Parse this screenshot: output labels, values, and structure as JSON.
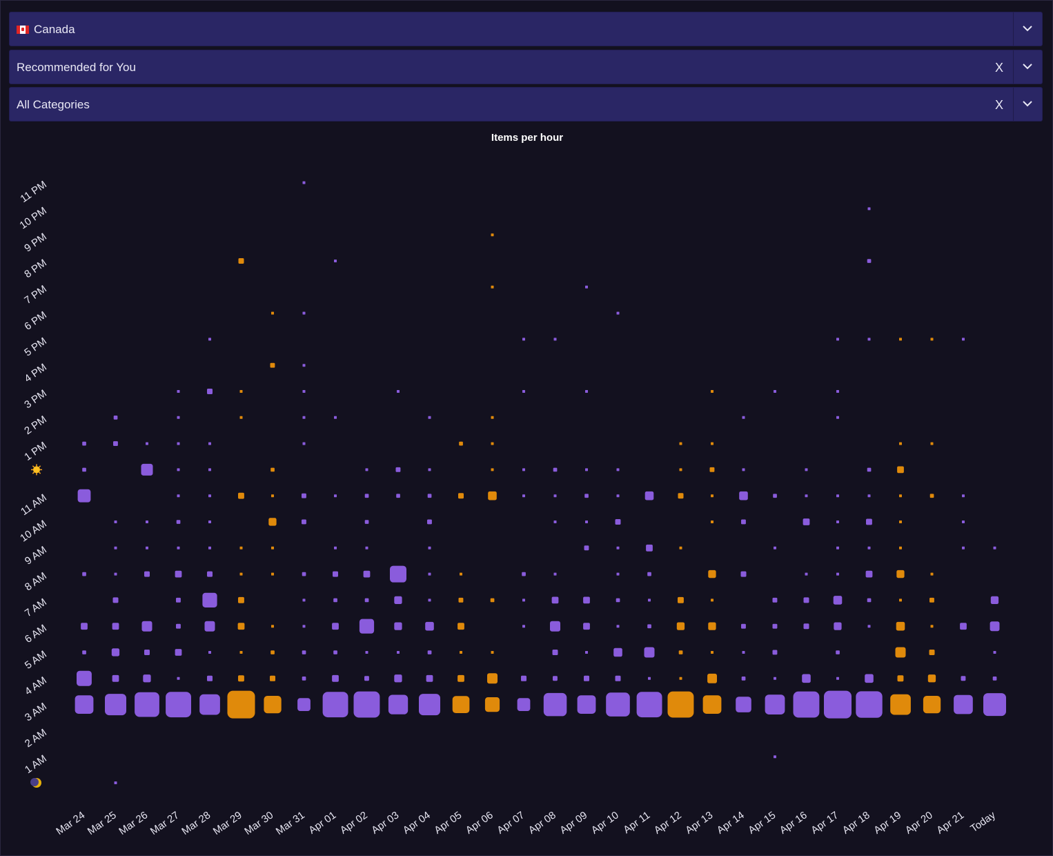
{
  "filters": {
    "country": {
      "label": "Canada",
      "flag_icon": "canada-flag-icon"
    },
    "feed": {
      "label": "Recommended for You",
      "clear_label": "X"
    },
    "category": {
      "label": "All Categories",
      "clear_label": "X"
    }
  },
  "colors": {
    "background": "#13111f",
    "select_bg": "#2a2665",
    "purple": "#8a5cdc",
    "orange": "#e08a0b"
  },
  "chart_data": {
    "type": "scatter",
    "title": "Items per hour",
    "x_categories": [
      "Mar 24",
      "Mar 25",
      "Mar 26",
      "Mar 27",
      "Mar 28",
      "Mar 29",
      "Mar 30",
      "Mar 31",
      "Apr 01",
      "Apr 02",
      "Apr 03",
      "Apr 04",
      "Apr 05",
      "Apr 06",
      "Apr 07",
      "Apr 08",
      "Apr 09",
      "Apr 10",
      "Apr 11",
      "Apr 12",
      "Apr 13",
      "Apr 14",
      "Apr 15",
      "Apr 16",
      "Apr 17",
      "Apr 18",
      "Apr 19",
      "Apr 20",
      "Apr 21",
      "Today"
    ],
    "y_categories": [
      "midnight",
      "1 AM",
      "2 AM",
      "3 AM",
      "4 AM",
      "5 AM",
      "6 AM",
      "7 AM",
      "8 AM",
      "9 AM",
      "10 AM",
      "11 AM",
      "noon",
      "1 PM",
      "2 PM",
      "3 PM",
      "4 PM",
      "5 PM",
      "6 PM",
      "7 PM",
      "8 PM",
      "9 PM",
      "10 PM",
      "11 PM"
    ],
    "y_tick_icons": {
      "midnight": "moon-icon",
      "noon": "sun-icon"
    },
    "weekend_columns": [
      "Mar 29",
      "Mar 30",
      "Apr 05",
      "Apr 06",
      "Apr 12",
      "Apr 13",
      "Apr 19",
      "Apr 20"
    ],
    "marker_color_weekday": "#8a5cdc",
    "marker_color_weekend": "#e08a0b",
    "size_note": "marker area proportional to items per hour (relative scale, max = 100)",
    "series": [
      {
        "x": "Mar 24",
        "values": {
          "3 AM": 45,
          "4 AM": 30,
          "5 AM": 2,
          "6 AM": 6,
          "7 AM": 0,
          "8 AM": 2,
          "9 AM": 0,
          "10 AM": 0,
          "11 AM": 22,
          "noon": 2,
          "1 PM": 2
        }
      },
      {
        "x": "Mar 25",
        "values": {
          "midnight": 1,
          "3 AM": 60,
          "4 AM": 6,
          "5 AM": 8,
          "6 AM": 6,
          "7 AM": 4,
          "8 AM": 1,
          "9 AM": 1,
          "10 AM": 1,
          "1 PM": 3,
          "2 PM": 2
        }
      },
      {
        "x": "Mar 26",
        "values": {
          "3 AM": 80,
          "4 AM": 8,
          "5 AM": 4,
          "6 AM": 14,
          "8 AM": 4,
          "9 AM": 1,
          "10 AM": 1,
          "noon": 18,
          "1 PM": 1
        }
      },
      {
        "x": "Mar 27",
        "values": {
          "3 AM": 85,
          "4 AM": 1,
          "5 AM": 6,
          "6 AM": 3,
          "7 AM": 3,
          "8 AM": 6,
          "9 AM": 1,
          "10 AM": 2,
          "11 AM": 1,
          "noon": 1,
          "1 PM": 1,
          "2 PM": 1,
          "3 PM": 1
        }
      },
      {
        "x": "Mar 28",
        "values": {
          "3 AM": 55,
          "4 AM": 4,
          "5 AM": 1,
          "6 AM": 14,
          "7 AM": 28,
          "8 AM": 4,
          "9 AM": 1,
          "10 AM": 1,
          "11 AM": 1,
          "noon": 1,
          "1 PM": 1,
          "3 PM": 4,
          "5 PM": 1
        }
      },
      {
        "x": "Mar 29",
        "values": {
          "3 AM": 100,
          "4 AM": 5,
          "5 AM": 1,
          "6 AM": 6,
          "7 AM": 5,
          "8 AM": 1,
          "9 AM": 1,
          "11 AM": 5,
          "2 PM": 1,
          "3 PM": 1,
          "8 PM": 4
        }
      },
      {
        "x": "Mar 30",
        "values": {
          "3 AM": 40,
          "4 AM": 4,
          "5 AM": 2,
          "6 AM": 1,
          "8 AM": 1,
          "9 AM": 1,
          "10 AM": 8,
          "11 AM": 1,
          "noon": 2,
          "4 PM": 3,
          "6 PM": 1
        }
      },
      {
        "x": "Mar 31",
        "values": {
          "3 AM": 22,
          "4 AM": 2,
          "5 AM": 2,
          "6 AM": 1,
          "7 AM": 1,
          "8 AM": 2,
          "10 AM": 3,
          "11 AM": 3,
          "1 PM": 1,
          "2 PM": 1,
          "3 PM": 1,
          "4 PM": 1,
          "6 PM": 1,
          "11 PM": 1
        }
      },
      {
        "x": "Apr 01",
        "values": {
          "3 AM": 85,
          "4 AM": 6,
          "5 AM": 2,
          "6 AM": 6,
          "7 AM": 2,
          "8 AM": 4,
          "9 AM": 1,
          "11 AM": 1,
          "2 PM": 1,
          "8 PM": 1
        }
      },
      {
        "x": "Apr 02",
        "values": {
          "3 AM": 90,
          "4 AM": 3,
          "5 AM": 1,
          "6 AM": 28,
          "7 AM": 2,
          "8 AM": 6,
          "9 AM": 1,
          "10 AM": 2,
          "11 AM": 2,
          "noon": 1
        }
      },
      {
        "x": "Apr 03",
        "values": {
          "3 AM": 50,
          "4 AM": 8,
          "5 AM": 1,
          "6 AM": 8,
          "7 AM": 8,
          "8 AM": 36,
          "11 AM": 2,
          "noon": 3,
          "3 PM": 1
        }
      },
      {
        "x": "Apr 04",
        "values": {
          "3 AM": 60,
          "4 AM": 6,
          "5 AM": 2,
          "6 AM": 10,
          "7 AM": 1,
          "8 AM": 1,
          "9 AM": 1,
          "10 AM": 3,
          "11 AM": 2,
          "noon": 1,
          "2 PM": 1
        }
      },
      {
        "x": "Apr 05",
        "values": {
          "3 AM": 38,
          "4 AM": 6,
          "5 AM": 1,
          "6 AM": 6,
          "7 AM": 3,
          "8 AM": 1,
          "11 AM": 4,
          "1 PM": 2
        }
      },
      {
        "x": "Apr 06",
        "values": {
          "3 AM": 28,
          "4 AM": 14,
          "5 AM": 1,
          "7 AM": 2,
          "11 AM": 10,
          "noon": 1,
          "1 PM": 1,
          "2 PM": 1,
          "7 PM": 1,
          "9 PM": 1
        }
      },
      {
        "x": "Apr 07",
        "values": {
          "3 AM": 22,
          "4 AM": 4,
          "6 AM": 1,
          "7 AM": 1,
          "8 AM": 2,
          "11 AM": 1,
          "noon": 1,
          "3 PM": 1,
          "5 PM": 1
        }
      },
      {
        "x": "Apr 08",
        "values": {
          "3 AM": 70,
          "4 AM": 3,
          "5 AM": 4,
          "6 AM": 14,
          "7 AM": 6,
          "8 AM": 1,
          "10 AM": 1,
          "11 AM": 1,
          "noon": 2,
          "5 PM": 1
        }
      },
      {
        "x": "Apr 09",
        "values": {
          "3 AM": 45,
          "4 AM": 4,
          "5 AM": 1,
          "6 AM": 6,
          "7 AM": 6,
          "9 AM": 3,
          "10 AM": 1,
          "11 AM": 2,
          "noon": 1,
          "3 PM": 1,
          "7 PM": 1
        }
      },
      {
        "x": "Apr 10",
        "values": {
          "3 AM": 75,
          "4 AM": 4,
          "5 AM": 10,
          "6 AM": 1,
          "7 AM": 2,
          "8 AM": 1,
          "9 AM": 1,
          "10 AM": 4,
          "11 AM": 1,
          "noon": 1,
          "6 PM": 1
        }
      },
      {
        "x": "Apr 11",
        "values": {
          "3 AM": 85,
          "4 AM": 1,
          "5 AM": 14,
          "6 AM": 2,
          "7 AM": 1,
          "8 AM": 2,
          "9 AM": 6,
          "11 AM": 10
        }
      },
      {
        "x": "Apr 12",
        "values": {
          "3 AM": 90,
          "4 AM": 1,
          "5 AM": 2,
          "6 AM": 8,
          "7 AM": 5,
          "9 AM": 1,
          "11 AM": 4,
          "noon": 1,
          "1 PM": 1
        }
      },
      {
        "x": "Apr 13",
        "values": {
          "3 AM": 45,
          "4 AM": 12,
          "5 AM": 1,
          "6 AM": 8,
          "7 AM": 1,
          "8 AM": 8,
          "10 AM": 1,
          "11 AM": 1,
          "noon": 3,
          "1 PM": 1,
          "3 PM": 1
        }
      },
      {
        "x": "Apr 14",
        "values": {
          "3 AM": 32,
          "4 AM": 2,
          "5 AM": 1,
          "6 AM": 3,
          "8 AM": 4,
          "10 AM": 3,
          "11 AM": 10,
          "noon": 1,
          "2 PM": 1
        }
      },
      {
        "x": "Apr 15",
        "values": {
          "1 AM": 1,
          "3 AM": 52,
          "4 AM": 1,
          "5 AM": 3,
          "6 AM": 3,
          "7 AM": 3,
          "9 AM": 1,
          "11 AM": 2,
          "3 PM": 1
        }
      },
      {
        "x": "Apr 16",
        "values": {
          "3 AM": 90,
          "4 AM": 10,
          "6 AM": 4,
          "7 AM": 4,
          "8 AM": 1,
          "10 AM": 6,
          "11 AM": 1,
          "noon": 1
        }
      },
      {
        "x": "Apr 17",
        "values": {
          "3 AM": 100,
          "4 AM": 1,
          "5 AM": 2,
          "6 AM": 8,
          "7 AM": 10,
          "8 AM": 1,
          "9 AM": 1,
          "10 AM": 1,
          "11 AM": 1,
          "2 PM": 1,
          "3 PM": 1,
          "5 PM": 1
        }
      },
      {
        "x": "Apr 18",
        "values": {
          "3 AM": 92,
          "4 AM": 10,
          "6 AM": 1,
          "7 AM": 2,
          "8 AM": 6,
          "9 AM": 1,
          "10 AM": 5,
          "11 AM": 1,
          "noon": 2,
          "5 PM": 1,
          "8 PM": 2,
          "10 PM": 1
        }
      },
      {
        "x": "Apr 19",
        "values": {
          "3 AM": 55,
          "4 AM": 5,
          "5 AM": 14,
          "6 AM": 10,
          "7 AM": 1,
          "8 AM": 8,
          "9 AM": 1,
          "10 AM": 1,
          "11 AM": 1,
          "noon": 6,
          "1 PM": 1,
          "5 PM": 1
        }
      },
      {
        "x": "Apr 20",
        "values": {
          "3 AM": 40,
          "4 AM": 8,
          "5 AM": 4,
          "6 AM": 1,
          "7 AM": 3,
          "8 AM": 1,
          "11 AM": 2,
          "1 PM": 1,
          "5 PM": 1
        }
      },
      {
        "x": "Apr 21",
        "values": {
          "3 AM": 48,
          "4 AM": 3,
          "6 AM": 6,
          "9 AM": 1,
          "10 AM": 1,
          "11 AM": 1,
          "5 PM": 1
        }
      },
      {
        "x": "Today",
        "values": {
          "3 AM": 68,
          "4 AM": 2,
          "5 AM": 1,
          "6 AM": 12,
          "7 AM": 8,
          "9 AM": 1
        }
      }
    ]
  }
}
